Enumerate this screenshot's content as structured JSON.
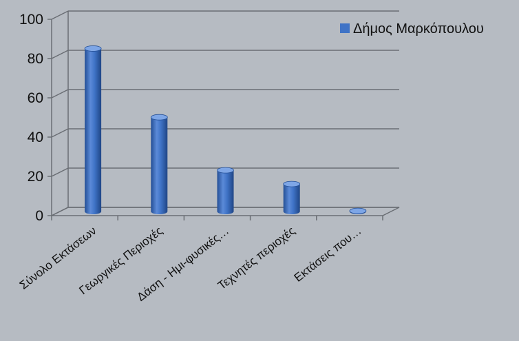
{
  "chart_data": {
    "type": "bar",
    "categories": [
      "Σύνολο Εκτάσεων",
      "Γεωργικές Περιοχές",
      "Δάση - Ημι-φυσικές…",
      "Τεχνητές περιοχές",
      "Εκτάσεις που…"
    ],
    "series": [
      {
        "name": "Δήμος Μαρκόπουλου",
        "values": [
          83,
          48,
          21,
          14,
          0.3
        ]
      }
    ],
    "y_ticks": [
      0,
      20,
      40,
      60,
      80,
      100
    ],
    "ylim": [
      0,
      100
    ],
    "grid": true,
    "legend": "top-right",
    "colors": {
      "bar": "#3f73c6",
      "bar_dark": "#244f96",
      "bar_light": "#7ea6e6",
      "grid": "#6a6e74",
      "background": "#b6bbc2"
    }
  }
}
